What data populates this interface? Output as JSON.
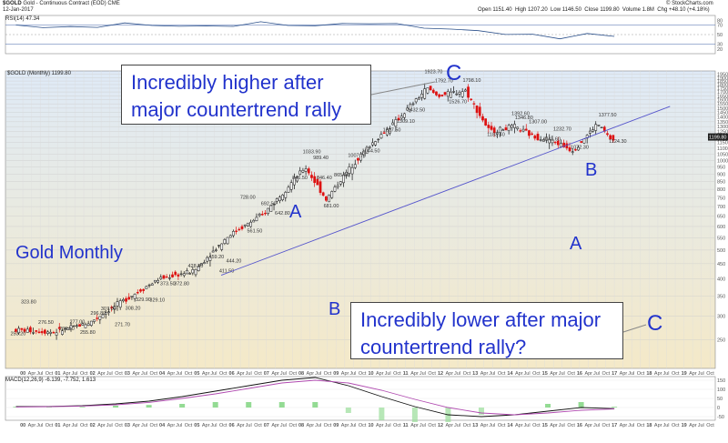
{
  "header": {
    "symbol": "$GOLD",
    "description": "Gold - Continuous Contract (EOD)",
    "exchange": "CME",
    "date": "12-Jan-2017",
    "open_label": "Open",
    "open": "1151.40",
    "high_label": "High",
    "high": "1207.20",
    "low_label": "Low",
    "low": "1146.50",
    "close_label": "Close",
    "close": "1199.80",
    "volume_label": "Volume",
    "volume": "1.8M",
    "chg_label": "Chg",
    "chg": "+48.10 (+4.18%)",
    "credit": "© StockCharts.com"
  },
  "rsi": {
    "label": "RSI(14) 47.34",
    "levels": [
      "80",
      "70",
      "50",
      "30",
      "20"
    ]
  },
  "main": {
    "label": "$GOLD (Monthly) 1199.80",
    "price_tag": "1199.80"
  },
  "macd": {
    "label": "MACD(12,26,9) -6.139, -7.752, 1.613",
    "levels": [
      "150",
      "100",
      "50",
      "0",
      "-50"
    ]
  },
  "annotations": {
    "box_top": "Incredibly higher after major countertrend rally",
    "box_bottom": "Incredibly lower after major countertrend rally?",
    "c_top": "C",
    "c_bottom": "C",
    "a1": "A",
    "b1": "B",
    "a2": "A",
    "b2": "B",
    "title": "Gold Monthly"
  },
  "chart_data": {
    "type": "ohlc-candlestick",
    "title": "$GOLD (Monthly)",
    "y_scale": "log",
    "ylim": [
      200,
      2000
    ],
    "y_ticks": [
      250,
      300,
      350,
      400,
      450,
      500,
      550,
      600,
      650,
      700,
      750,
      800,
      850,
      900,
      950,
      1000,
      1050,
      1100,
      1150,
      1200,
      1250,
      1300,
      1350,
      1400,
      1450,
      1500,
      1550,
      1600,
      1650,
      1700,
      1750,
      1800,
      1850,
      1900,
      1950
    ],
    "x_years": [
      "00",
      "01",
      "02",
      "03",
      "04",
      "05",
      "06",
      "07",
      "08",
      "09",
      "10",
      "11",
      "12",
      "13",
      "14",
      "15",
      "16",
      "17",
      "18",
      "19"
    ],
    "x_months_per_year": [
      "Apr",
      "Jul",
      "Oct"
    ],
    "price_labels": [
      {
        "t": 1999.8,
        "v": 253.2
      },
      {
        "t": 2000.1,
        "v": 323.8
      },
      {
        "t": 2000.6,
        "v": 276.5
      },
      {
        "t": 2001.2,
        "v": 263.5
      },
      {
        "t": 2001.5,
        "v": 277.0
      },
      {
        "t": 2001.8,
        "v": 255.8
      },
      {
        "t": 2002.1,
        "v": 296.8
      },
      {
        "t": 2002.4,
        "v": 307.0
      },
      {
        "t": 2002.8,
        "v": 271.7
      },
      {
        "t": 2003.1,
        "v": 308.2
      },
      {
        "t": 2003.4,
        "v": 329.9
      },
      {
        "t": 2003.8,
        "v": 329.1
      },
      {
        "t": 2004.1,
        "v": 373.5
      },
      {
        "t": 2004.5,
        "v": 372.8
      },
      {
        "t": 2004.9,
        "v": 428.3
      },
      {
        "t": 2005.5,
        "v": 459.2
      },
      {
        "t": 2006.0,
        "v": 444.2
      },
      {
        "t": 2005.8,
        "v": 411.5
      },
      {
        "t": 2006.4,
        "v": 728.0
      },
      {
        "t": 2006.6,
        "v": 561.5
      },
      {
        "t": 2007.0,
        "v": 692.5
      },
      {
        "t": 2007.4,
        "v": 642.8
      },
      {
        "t": 2007.9,
        "v": 846.5
      },
      {
        "t": 2008.2,
        "v": 1033.9
      },
      {
        "t": 2008.5,
        "v": 989.4
      },
      {
        "t": 2008.6,
        "v": 846.4
      },
      {
        "t": 2008.8,
        "v": 681.0
      },
      {
        "t": 2009.1,
        "v": 865.0
      },
      {
        "t": 2009.5,
        "v": 1007.7
      },
      {
        "t": 2009.9,
        "v": 1044.5
      },
      {
        "t": 2010.5,
        "v": 1227.5
      },
      {
        "t": 2010.9,
        "v": 1309.1
      },
      {
        "t": 2011.2,
        "v": 1432.5
      },
      {
        "t": 2011.7,
        "v": 1923.7
      },
      {
        "t": 2012.0,
        "v": 1792.7
      },
      {
        "t": 2012.4,
        "v": 1526.7
      },
      {
        "t": 2012.8,
        "v": 1798.1
      },
      {
        "t": 2013.5,
        "v": 1183.4
      },
      {
        "t": 2014.2,
        "v": 1392.6
      },
      {
        "t": 2014.3,
        "v": 1346.8
      },
      {
        "t": 2014.7,
        "v": 1307.0
      },
      {
        "t": 2015.1,
        "v": 1141.6
      },
      {
        "t": 2015.4,
        "v": 1232.7
      },
      {
        "t": 2015.9,
        "v": 1072.3
      },
      {
        "t": 2016.7,
        "v": 1377.5
      },
      {
        "t": 2017.0,
        "v": 1124.3
      }
    ],
    "series": [
      {
        "name": "Gold (Monthly)",
        "approx_path": [
          {
            "t": 1999.8,
            "v": 270
          },
          {
            "t": 2001.0,
            "v": 265
          },
          {
            "t": 2002.0,
            "v": 285
          },
          {
            "t": 2003.0,
            "v": 340
          },
          {
            "t": 2004.0,
            "v": 400
          },
          {
            "t": 2005.0,
            "v": 425
          },
          {
            "t": 2006.0,
            "v": 560
          },
          {
            "t": 2007.0,
            "v": 660
          },
          {
            "t": 2008.2,
            "v": 950
          },
          {
            "t": 2008.8,
            "v": 740
          },
          {
            "t": 2009.5,
            "v": 950
          },
          {
            "t": 2010.0,
            "v": 1110
          },
          {
            "t": 2010.8,
            "v": 1350
          },
          {
            "t": 2011.7,
            "v": 1750
          },
          {
            "t": 2012.0,
            "v": 1650
          },
          {
            "t": 2012.8,
            "v": 1720
          },
          {
            "t": 2013.5,
            "v": 1250
          },
          {
            "t": 2014.2,
            "v": 1300
          },
          {
            "t": 2014.8,
            "v": 1200
          },
          {
            "t": 2015.2,
            "v": 1180
          },
          {
            "t": 2015.9,
            "v": 1080
          },
          {
            "t": 2016.6,
            "v": 1330
          },
          {
            "t": 2017.0,
            "v": 1170
          }
        ]
      }
    ],
    "trendline": [
      {
        "t": 2005.7,
        "v": 411.5
      },
      {
        "t": 2018.6,
        "v": 1520
      }
    ],
    "rsi_path": [
      70,
      66,
      64,
      68,
      72,
      70,
      68,
      66,
      70,
      74,
      71,
      68,
      72,
      75,
      70,
      66,
      60,
      58,
      52,
      48,
      44,
      50,
      47
    ],
    "macd": {
      "macd": [
        5,
        6,
        10,
        20,
        35,
        60,
        90,
        120,
        150,
        165,
        120,
        60,
        5,
        -40,
        -50,
        -40,
        -20,
        0,
        -6
      ],
      "signal": [
        3,
        5,
        8,
        15,
        28,
        50,
        75,
        105,
        135,
        150,
        135,
        95,
        45,
        0,
        -30,
        -40,
        -30,
        -15,
        -8
      ]
    }
  }
}
